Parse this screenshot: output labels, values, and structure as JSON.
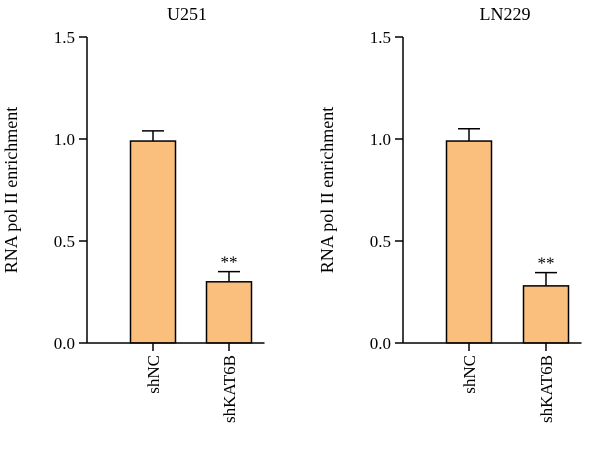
{
  "colors": {
    "bar_fill": "#fbbf7d",
    "axis": "#000000"
  },
  "chart_data": [
    {
      "type": "bar",
      "title": "U251",
      "ylabel": "RNA pol II enrichment",
      "xlabel": "",
      "categories": [
        "shNC",
        "shKAT6B"
      ],
      "values": [
        0.99,
        0.3
      ],
      "errors": [
        0.05,
        0.05
      ],
      "significance": [
        "",
        "**"
      ],
      "ylim": [
        0,
        1.5
      ],
      "yticks": [
        0.0,
        0.5,
        1.0,
        1.5
      ],
      "ytick_labels": [
        "0.0",
        "0.5",
        "1.0",
        "1.5"
      ],
      "grid": false
    },
    {
      "type": "bar",
      "title": "LN229",
      "ylabel": "RNA pol II enrichment",
      "xlabel": "",
      "categories": [
        "shNC",
        "shKAT6B"
      ],
      "values": [
        0.99,
        0.28
      ],
      "errors": [
        0.06,
        0.065
      ],
      "significance": [
        "",
        "**"
      ],
      "ylim": [
        0,
        1.5
      ],
      "yticks": [
        0.0,
        0.5,
        1.0,
        1.5
      ],
      "ytick_labels": [
        "0.0",
        "0.5",
        "1.0",
        "1.5"
      ],
      "grid": false
    }
  ]
}
